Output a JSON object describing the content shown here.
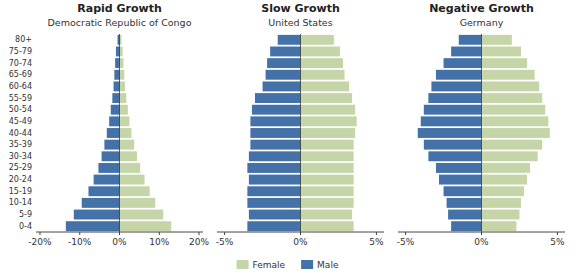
{
  "chart_data": [
    {
      "type": "bar",
      "orientation": "horizontal",
      "title": "Rapid Growth",
      "subtitle": "Democratic Republic of Congo",
      "categories": [
        "0-4",
        "5-9",
        "10-14",
        "15-19",
        "20-24",
        "25-29",
        "30-34",
        "35-39",
        "40-44",
        "45-49",
        "50-54",
        "55-59",
        "60-64",
        "65-69",
        "70-74",
        "75-79",
        "80+"
      ],
      "series": [
        {
          "name": "Male",
          "color": "#4472A8",
          "values": [
            -13.5,
            -11.5,
            -9.5,
            -7.8,
            -6.5,
            -5.3,
            -4.5,
            -3.8,
            -3.2,
            -2.6,
            -2.2,
            -1.8,
            -1.5,
            -1.3,
            -1.1,
            -0.9,
            -0.5
          ]
        },
        {
          "name": "Female",
          "color": "#C5D5A8",
          "values": [
            13.0,
            11.0,
            9.0,
            7.6,
            6.3,
            5.2,
            4.4,
            3.7,
            3.0,
            2.5,
            2.1,
            1.7,
            1.4,
            1.2,
            1.0,
            0.8,
            0.5
          ]
        }
      ],
      "xlim": [
        -21,
        21
      ],
      "xticks": [
        {
          "value": -20,
          "label": "-20%"
        },
        {
          "value": -10,
          "label": "-10%"
        },
        {
          "value": 0,
          "label": "0%"
        },
        {
          "value": 10,
          "label": "10%"
        },
        {
          "value": 20,
          "label": "20%"
        }
      ],
      "grid": false,
      "legend": "bottom"
    },
    {
      "type": "bar",
      "orientation": "horizontal",
      "title": "Slow Growth",
      "subtitle": "United States",
      "categories": [
        "0-4",
        "5-9",
        "10-14",
        "15-19",
        "20-24",
        "25-29",
        "30-34",
        "35-39",
        "40-44",
        "45-49",
        "50-54",
        "55-59",
        "60-64",
        "65-69",
        "70-74",
        "75-79",
        "80+"
      ],
      "series": [
        {
          "name": "Male",
          "color": "#4472A8",
          "values": [
            -3.5,
            -3.4,
            -3.5,
            -3.5,
            -3.4,
            -3.5,
            -3.4,
            -3.3,
            -3.3,
            -3.3,
            -3.2,
            -3.0,
            -2.5,
            -2.3,
            -2.2,
            -2.0,
            -1.5
          ]
        },
        {
          "name": "Female",
          "color": "#C5D5A8",
          "values": [
            3.5,
            3.4,
            3.5,
            3.5,
            3.5,
            3.5,
            3.5,
            3.5,
            3.6,
            3.7,
            3.6,
            3.4,
            3.2,
            2.9,
            2.8,
            2.6,
            2.2
          ]
        }
      ],
      "xlim": [
        -5.5,
        5.5
      ],
      "xticks": [
        {
          "value": -5,
          "label": "-5%"
        },
        {
          "value": 0,
          "label": "0%"
        },
        {
          "value": 5,
          "label": "5%"
        }
      ],
      "grid": false,
      "tick_labels": "x"
    },
    {
      "type": "bar",
      "orientation": "horizontal",
      "title": "Negative Growth",
      "subtitle": "Germany",
      "categories": [
        "0-4",
        "5-9",
        "10-14",
        "15-19",
        "20-24",
        "25-29",
        "30-34",
        "35-39",
        "40-44",
        "45-49",
        "50-54",
        "55-59",
        "60-64",
        "65-69",
        "70-74",
        "75-79",
        "80+"
      ],
      "series": [
        {
          "name": "Male",
          "color": "#4472A8",
          "values": [
            -2.0,
            -2.2,
            -2.3,
            -2.5,
            -2.8,
            -3.0,
            -3.5,
            -3.8,
            -4.2,
            -4.0,
            -3.8,
            -3.5,
            -3.3,
            -3.0,
            -2.5,
            -2.0,
            -1.5
          ]
        },
        {
          "name": "Female",
          "color": "#C5D5A8",
          "values": [
            2.3,
            2.5,
            2.6,
            2.8,
            3.0,
            3.2,
            3.7,
            4.0,
            4.5,
            4.4,
            4.2,
            4.0,
            3.8,
            3.5,
            3.0,
            2.6,
            2.0
          ]
        }
      ],
      "xlim": [
        -5.5,
        5.5
      ],
      "xticks": [
        {
          "value": -5,
          "label": "-5%"
        },
        {
          "value": 0,
          "label": "0%"
        },
        {
          "value": 5,
          "label": "5%"
        }
      ],
      "grid": false,
      "tick_labels": "x"
    }
  ]
}
